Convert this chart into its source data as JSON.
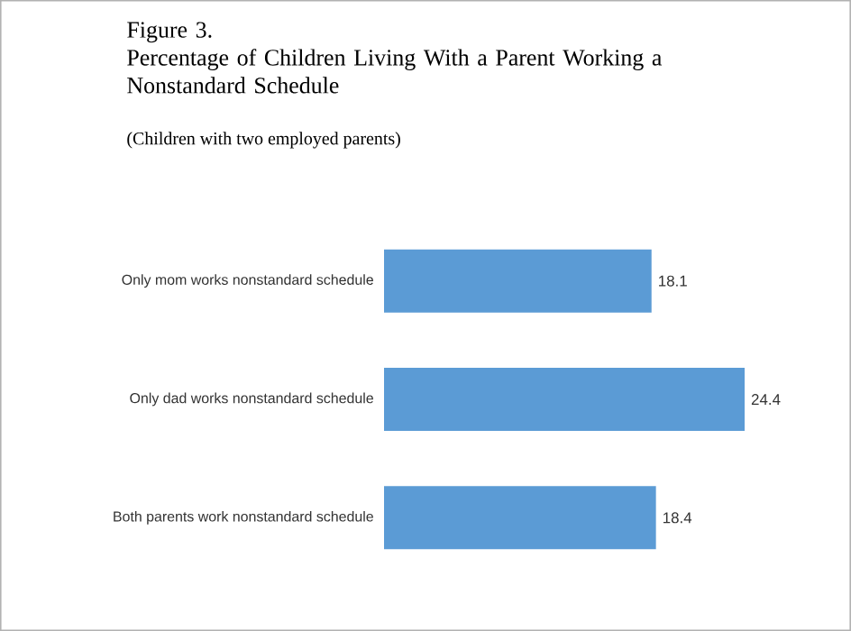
{
  "chart_data": {
    "type": "bar",
    "orientation": "horizontal",
    "title": "Figure 3.",
    "subtitle": "Percentage of Children Living With a Parent Working a Nonstandard Schedule",
    "annotations": [
      "(Children with two employed parents)"
    ],
    "categories": [
      "Only mom works nonstandard schedule",
      "Only dad works nonstandard schedule",
      "Both parents work nonstandard schedule"
    ],
    "values": [
      18.1,
      24.4,
      18.4
    ],
    "color": "#5b9bd5",
    "data_labels": true
  }
}
